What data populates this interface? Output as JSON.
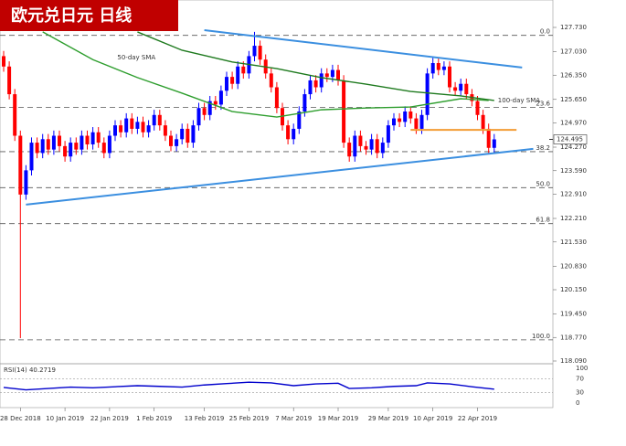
{
  "chart_data": {
    "type": "candlestick",
    "title": "欧元兑日元  日线",
    "categories": [
      null,
      null,
      null,
      "28 Dec 2018",
      null,
      null,
      null,
      null,
      null,
      null,
      null,
      "10 Jan 2019",
      null,
      null,
      null,
      null,
      null,
      null,
      null,
      "22 Jan 2019",
      null,
      null,
      null,
      null,
      null,
      null,
      null,
      "1 Feb 2019",
      null,
      null,
      null,
      null,
      null,
      null,
      null,
      null,
      "13 Feb 2019",
      null,
      null,
      null,
      null,
      null,
      null,
      null,
      "25 Feb 2019",
      null,
      null,
      null,
      null,
      null,
      null,
      null,
      "7 Mar 2019",
      null,
      null,
      null,
      null,
      null,
      null,
      null,
      "19 Mar 2019",
      null,
      null,
      null,
      null,
      null,
      null,
      null,
      null,
      "29 Mar 2019",
      null,
      null,
      null,
      null,
      null,
      null,
      null,
      "10 Apr 2019",
      null,
      null,
      null,
      null,
      null,
      null,
      null,
      "22 Apr 2019",
      null,
      null,
      null
    ],
    "ohlc": {
      "up_color": "#0000ff",
      "down_color": "#ff0000",
      "open": [
        126.9,
        126.6,
        125.8,
        124.6,
        122.9,
        123.6,
        124.4,
        124.1,
        124.5,
        124.2,
        124.6,
        124.3,
        124.0,
        124.4,
        124.2,
        124.6,
        124.35,
        124.7,
        124.4,
        124.1,
        124.6,
        124.9,
        124.7,
        125.1,
        124.8,
        125.0,
        124.7,
        124.9,
        125.2,
        124.9,
        124.6,
        124.3,
        124.5,
        124.8,
        124.4,
        124.9,
        125.4,
        125.2,
        125.6,
        125.5,
        125.9,
        126.3,
        126.1,
        126.6,
        126.4,
        126.9,
        127.2,
        126.8,
        126.4,
        126.0,
        125.4,
        124.9,
        124.5,
        124.8,
        125.3,
        125.8,
        126.2,
        126.0,
        126.4,
        126.3,
        126.5,
        126.2,
        124.4,
        124.0,
        124.6,
        124.3,
        124.2,
        124.5,
        124.1,
        124.4,
        124.9,
        125.1,
        125.0,
        125.3,
        125.1,
        124.8,
        125.2,
        126.4,
        126.7,
        126.5,
        126.6,
        126.0,
        125.9,
        126.1,
        125.8,
        125.6,
        125.2,
        124.8,
        124.25
      ],
      "high": [
        127.05,
        126.75,
        125.95,
        124.75,
        123.75,
        124.55,
        124.55,
        124.65,
        124.65,
        124.75,
        124.75,
        124.45,
        124.55,
        124.55,
        124.75,
        124.75,
        124.85,
        124.85,
        124.55,
        124.75,
        125.05,
        125.05,
        125.25,
        125.25,
        125.15,
        125.15,
        125.05,
        125.35,
        125.35,
        125.05,
        124.75,
        124.65,
        124.95,
        124.95,
        125.05,
        125.55,
        125.55,
        125.75,
        125.75,
        126.05,
        126.45,
        126.45,
        126.75,
        126.75,
        127.05,
        127.6,
        127.35,
        126.95,
        126.55,
        126.15,
        125.55,
        125.05,
        124.95,
        125.45,
        125.95,
        126.35,
        126.35,
        126.55,
        126.55,
        126.65,
        126.65,
        126.35,
        124.55,
        124.75,
        124.75,
        124.45,
        124.65,
        124.65,
        124.55,
        125.05,
        125.25,
        125.25,
        125.45,
        125.45,
        125.25,
        125.35,
        126.55,
        126.85,
        126.85,
        126.75,
        126.75,
        126.15,
        126.25,
        126.25,
        125.95,
        125.75,
        125.35,
        124.95,
        124.65
      ],
      "low": [
        126.45,
        125.65,
        124.45,
        118.75,
        122.75,
        123.45,
        123.95,
        123.95,
        124.05,
        124.05,
        124.15,
        123.85,
        123.85,
        124.05,
        124.05,
        124.2,
        124.2,
        124.25,
        123.95,
        123.95,
        124.45,
        124.55,
        124.55,
        124.65,
        124.65,
        124.55,
        124.55,
        124.75,
        124.75,
        124.45,
        124.15,
        124.15,
        124.35,
        124.25,
        124.25,
        124.75,
        125.05,
        125.05,
        125.35,
        125.35,
        125.75,
        125.95,
        125.95,
        126.25,
        126.25,
        126.75,
        126.65,
        126.25,
        125.85,
        125.25,
        124.75,
        124.35,
        124.35,
        124.65,
        125.15,
        125.65,
        125.85,
        125.85,
        126.15,
        126.15,
        126.05,
        124.25,
        123.85,
        123.85,
        124.15,
        124.05,
        124.05,
        123.95,
        123.95,
        124.25,
        124.75,
        124.85,
        124.85,
        124.95,
        124.65,
        124.65,
        125.05,
        126.25,
        126.35,
        126.35,
        125.85,
        125.75,
        125.75,
        125.65,
        125.45,
        125.05,
        124.65,
        124.1,
        124.1
      ],
      "close": [
        126.6,
        125.8,
        124.6,
        122.9,
        123.6,
        124.4,
        124.1,
        124.5,
        124.2,
        124.6,
        124.3,
        124.0,
        124.4,
        124.2,
        124.6,
        124.35,
        124.7,
        124.4,
        124.1,
        124.6,
        124.9,
        124.7,
        125.1,
        124.8,
        125.0,
        124.7,
        124.9,
        125.2,
        124.9,
        124.6,
        124.3,
        124.5,
        124.8,
        124.4,
        124.9,
        125.4,
        125.2,
        125.6,
        125.5,
        125.9,
        126.3,
        126.1,
        126.6,
        126.4,
        126.9,
        127.2,
        126.8,
        126.4,
        126.0,
        125.4,
        124.9,
        124.5,
        124.8,
        125.3,
        125.8,
        126.2,
        126.0,
        126.4,
        126.3,
        126.5,
        126.2,
        124.4,
        124.0,
        124.6,
        124.3,
        124.2,
        124.5,
        124.1,
        124.4,
        124.9,
        125.1,
        125.0,
        125.3,
        125.1,
        124.8,
        125.2,
        126.4,
        126.7,
        126.5,
        126.6,
        126.0,
        125.9,
        126.1,
        125.8,
        125.6,
        125.2,
        124.8,
        124.25,
        124.495
      ]
    },
    "series": [
      {
        "name": "50-day SMA",
        "color": "#2e9e2e",
        "x": [
          7,
          16,
          24,
          32,
          41,
          49,
          57,
          65,
          73,
          82,
          87
        ],
        "values": [
          127.6,
          126.8,
          126.28,
          125.83,
          125.3,
          125.14,
          125.35,
          125.4,
          125.43,
          125.67,
          125.62
        ]
      },
      {
        "name": "100-day SMA",
        "color": "#1e7a1e",
        "x": [
          24,
          32,
          41,
          49,
          57,
          65,
          73,
          82,
          88
        ],
        "values": [
          127.6,
          127.07,
          126.73,
          126.54,
          126.28,
          126.09,
          125.88,
          125.75,
          125.62
        ]
      }
    ],
    "trendlines": [
      {
        "color": "#3b8fe0",
        "x": [
          36,
          93
        ],
        "values": [
          127.65,
          126.57
        ]
      },
      {
        "color": "#3b8fe0",
        "x": [
          4,
          95
        ],
        "values": [
          122.61,
          124.22
        ]
      },
      {
        "color": "#f39c34",
        "x": [
          73,
          92
        ],
        "values": [
          124.77,
          124.77
        ]
      }
    ],
    "fib_levels": [
      {
        "value": 127.5,
        "label": "0.0"
      },
      {
        "value": 125.42,
        "label": "23.6"
      },
      {
        "value": 124.14,
        "label": "38.2"
      },
      {
        "value": 123.1,
        "label": "50.0"
      },
      {
        "value": 122.06,
        "label": "61.8"
      },
      {
        "value": 118.7,
        "label": "100.0"
      }
    ],
    "last_price": 124.495,
    "ylim": [
      118.09,
      127.73
    ],
    "yticks": [
      {
        "value": 127.73,
        "label": "127.730"
      },
      {
        "value": 127.03,
        "label": "127.030"
      },
      {
        "value": 126.35,
        "label": "126.350"
      },
      {
        "value": 125.65,
        "label": "125.650"
      },
      {
        "value": 124.97,
        "label": "124.970"
      },
      {
        "value": 124.27,
        "label": "124.270"
      },
      {
        "value": 123.59,
        "label": "123.590"
      },
      {
        "value": 122.91,
        "label": "122.910"
      },
      {
        "value": 122.21,
        "label": "122.210"
      },
      {
        "value": 121.53,
        "label": "121.530"
      },
      {
        "value": 120.83,
        "label": "120.830"
      },
      {
        "value": 120.15,
        "label": "120.150"
      },
      {
        "value": 119.45,
        "label": "119.450"
      },
      {
        "value": 118.77,
        "label": "118.770"
      },
      {
        "value": 118.09,
        "label": "118.090"
      }
    ],
    "rsi": {
      "label": "RSI(14) 40.2719",
      "color": "#0000cc",
      "x": [
        0,
        4,
        8,
        12,
        16,
        20,
        24,
        28,
        32,
        36,
        40,
        44,
        48,
        52,
        56,
        60,
        62,
        66,
        70,
        74,
        76,
        80,
        84,
        88
      ],
      "values": [
        45,
        38,
        42,
        46,
        44,
        47,
        50,
        48,
        46,
        52,
        56,
        60,
        58,
        50,
        55,
        57,
        42,
        44,
        48,
        50,
        58,
        55,
        47,
        40
      ],
      "ylim": [
        0,
        100
      ],
      "yticks": [
        100,
        70,
        30,
        0
      ]
    }
  }
}
